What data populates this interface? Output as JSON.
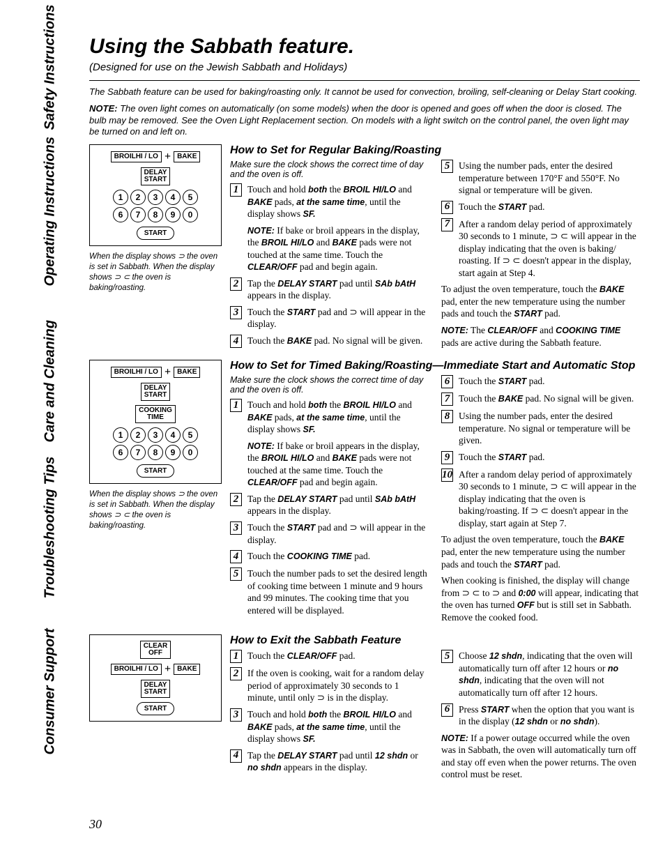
{
  "page_number": "30",
  "sidebar": [
    "Safety Instructions",
    "Operating Instructions",
    "Care and Cleaning",
    "Troubleshooting Tips",
    "Consumer Support"
  ],
  "title": "Using the Sabbath feature.",
  "subtitle": "(Designed for use on the Jewish Sabbath and Holidays)",
  "intro1": "The Sabbath feature can be used for baking/roasting only. It cannot be used for convection, broiling, self-cleaning or Delay Start cooking.",
  "intro2_label": "NOTE:",
  "intro2": " The oven light comes on automatically (on some models) when the door is opened and goes off when the door is closed. The bulb may be removed. See the Oven Light Replacement section. On models with a light switch on the control panel, the oven light may be turned on and left on.",
  "pads": {
    "broil": "BROIL",
    "broil_sub": "HI / LO",
    "bake": "BAKE",
    "delay": "DELAY\nSTART",
    "cooking": "COOKING\nTIME",
    "start": "START",
    "clear": "CLEAR\nOFF",
    "nums1": [
      "1",
      "2",
      "3",
      "4",
      "5"
    ],
    "nums2": [
      "6",
      "7",
      "8",
      "9",
      "0"
    ]
  },
  "figcap1": "When the display shows ⊃ the oven is set in Sabbath. When the display shows ⊃ ⊂ the oven is baking/roasting.",
  "figcap2": "When the display shows ⊃ the oven is set in Sabbath. When the display shows ⊃ ⊂ the oven is baking/roasting.",
  "sec1": {
    "h": "How to Set for Regular Baking/Roasting",
    "lead": "Make sure the clock shows the correct time of day and the oven is off.",
    "left": [
      {
        "n": "1",
        "html": "Touch and hold <span class='b'>both</span> the <span class='b'>BROIL HI/LO</span> and <span class='b'>BAKE</span> pads, <span class='b'>at the same time</span>, until the display shows <span class='b'>SF.</span>"
      },
      {
        "note": true,
        "html": "<span class='b'>NOTE:</span> If bake or broil appears in the display, the <span class='b'>BROIL HI/LO</span> and <span class='b'>BAKE</span> pads were not touched at the same time. Touch the <span class='b'>CLEAR/OFF</span> pad and begin again."
      },
      {
        "n": "2",
        "html": "Tap the <span class='b'>DELAY START</span> pad until <span class='b'>SAb bAtH</span> appears in the display."
      },
      {
        "n": "3",
        "html": "Touch the <span class='b'>START</span> pad and <span class='hglyph'>⊃</span> will appear in the display."
      },
      {
        "n": "4",
        "html": "Touch the <span class='b'>BAKE</span> pad. No signal will be given."
      }
    ],
    "right": [
      {
        "n": "5",
        "html": "Using the number pads, enter the desired temperature between 170°F and 550°F. No signal or temperature will be given."
      },
      {
        "n": "6",
        "html": "Touch the <span class='b'>START</span> pad."
      },
      {
        "n": "7",
        "html": "After a random delay period of approximately 30 seconds to 1 minute, <span class='hglyph'>⊃ ⊂</span> will appear in the display indicating that the oven is baking/ roasting. If <span class='hglyph'>⊃ ⊂</span> doesn't appear in the display, start again at Step 4."
      },
      {
        "para": true,
        "html": "To adjust the oven temperature, touch the <span class='b'>BAKE</span> pad, enter the new temperature using the number pads and touch the <span class='b'>START</span> pad."
      },
      {
        "para": true,
        "html": "<span class='b'>NOTE:</span> The <span class='b'>CLEAR/OFF</span> and <span class='b'>COOKING TIME</span> pads are active during the Sabbath feature."
      }
    ]
  },
  "sec2": {
    "h": "How to Set for Timed Baking/Roasting—Immediate Start and Automatic Stop",
    "lead": "Make sure the clock shows the correct time of day and the oven is off.",
    "left": [
      {
        "n": "1",
        "html": "Touch and hold <span class='b'>both</span> the <span class='b'>BROIL HI/LO</span> and <span class='b'>BAKE</span> pads, <span class='b'>at the same time</span>, until the display shows <span class='b'>SF.</span>"
      },
      {
        "note": true,
        "html": "<span class='b'>NOTE:</span> If bake or broil appears in the display, the <span class='b'>BROIL HI/LO</span> and <span class='b'>BAKE</span> pads were not touched at the same time. Touch the <span class='b'>CLEAR/OFF</span> pad and begin again."
      },
      {
        "n": "2",
        "html": "Tap the <span class='b'>DELAY START</span> pad until <span class='b'>SAb bAtH</span> appears in the display."
      },
      {
        "n": "3",
        "html": "Touch the <span class='b'>START</span> pad and <span class='hglyph'>⊃</span> will appear in the display."
      },
      {
        "n": "4",
        "html": "Touch the <span class='b'>COOKING TIME</span> pad."
      },
      {
        "n": "5",
        "html": "Touch the number pads to set the desired length of cooking time between 1 minute and 9 hours and 99 minutes. The cooking time that you entered will be displayed."
      }
    ],
    "right": [
      {
        "n": "6",
        "html": "Touch the <span class='b'>START</span> pad."
      },
      {
        "n": "7",
        "html": "Touch the <span class='b'>BAKE</span> pad. No signal will be given."
      },
      {
        "n": "8",
        "html": "Using the number pads, enter the desired temperature. No signal or temperature will be given."
      },
      {
        "n": "9",
        "html": "Touch the <span class='b'>START</span> pad."
      },
      {
        "n": "10",
        "html": "After a random delay period of approximately 30 seconds to 1 minute, <span class='hglyph'>⊃ ⊂</span> will appear in the display indicating that the oven is baking/roasting. If <span class='hglyph'>⊃ ⊂</span> doesn't appear in the display, start again at Step 7."
      },
      {
        "para": true,
        "html": "To adjust the oven temperature, touch the <span class='b'>BAKE</span> pad, enter the new temperature using the number pads and touch the <span class='b'>START</span> pad."
      },
      {
        "para": true,
        "html": "When cooking is finished, the display will change from <span class='hglyph'>⊃ ⊂</span> to <span class='hglyph'>⊃</span> and <span class='b'>0:00</span> will appear, indicating that the oven has turned <span class='b'>OFF</span> but is still set in Sabbath. Remove the cooked food."
      }
    ]
  },
  "sec3": {
    "h": "How to Exit the Sabbath Feature",
    "left": [
      {
        "n": "1",
        "html": "Touch the <span class='b'>CLEAR/OFF</span> pad."
      },
      {
        "n": "2",
        "html": "If the oven is cooking, wait for a random delay period of approximately 30 seconds to 1 minute, until only <span class='hglyph'>⊃</span> is in the display."
      },
      {
        "n": "3",
        "html": "Touch and hold <span class='b'>both</span> the <span class='b'>BROIL HI/LO</span> and <span class='b'>BAKE</span> pads, <span class='b'>at the same time</span>, until the display shows <span class='b'>SF.</span>"
      },
      {
        "n": "4",
        "html": "Tap the <span class='b'>DELAY START</span> pad until <span class='b'>12 shdn</span> or <span class='b'>no shdn</span> appears in the display."
      }
    ],
    "right": [
      {
        "n": "5",
        "html": "Choose <span class='b'>12 shdn</span>, indicating that the oven will automatically turn off after 12 hours or <span class='b'>no shdn</span>, indicating that the oven will not automatically turn off after 12 hours."
      },
      {
        "n": "6",
        "html": "Press <span class='b'>START</span> when the option that you want is in the display (<span class='b'>12 shdn</span> or <span class='b'>no shdn</span>)."
      },
      {
        "para": true,
        "html": "<span class='b'>NOTE:</span> If a power outage occurred while the oven was in Sabbath, the oven will automatically turn off and stay off even when the power returns. The oven control must be reset."
      }
    ]
  }
}
